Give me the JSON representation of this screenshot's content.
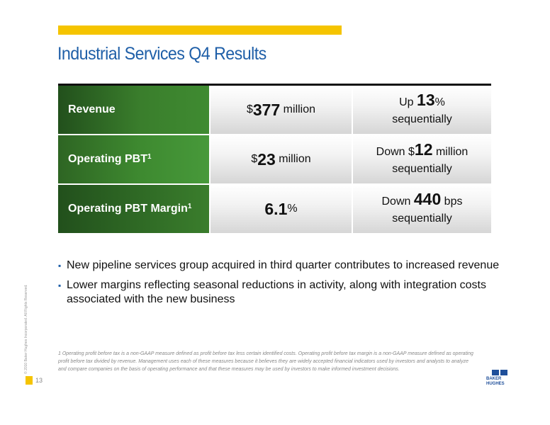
{
  "slide": {
    "title": "Industrial Services Q4 Results",
    "page_number": "13",
    "copyright": "© 2010 Baker Hughes Incorporated. All Rights Reserved."
  },
  "table": {
    "rows": [
      {
        "label": "Revenue",
        "label_sup": "",
        "value_pre": "$",
        "value_num": "377",
        "value_post": " million",
        "change_pre": "Up ",
        "change_num": "13",
        "change_post": "%",
        "change_line2": "sequentially"
      },
      {
        "label": "Operating PBT",
        "label_sup": "1",
        "value_pre": "$",
        "value_num": "23",
        "value_post": " million",
        "change_pre": "Down $",
        "change_num": "12",
        "change_post": " million",
        "change_line2": "sequentially"
      },
      {
        "label": "Operating PBT Margin",
        "label_sup": "1",
        "value_pre": "",
        "value_num": "6.1",
        "value_post": "%",
        "change_pre": "Down ",
        "change_num": "440",
        "change_post": " bps",
        "change_line2": "sequentially"
      }
    ]
  },
  "bullets": [
    "New pipeline services group acquired in third quarter contributes to increased revenue",
    "Lower margins reflecting seasonal reductions in activity, along with integration costs associated with the new business"
  ],
  "footnote": "1 Operating profit before tax is a non-GAAP measure defined as profit before tax less certain identified costs. Operating profit before tax margin is a non-GAAP measure defined as operating profit before tax divided by revenue. Management uses each of these measures because it believes they are widely accepted financial indicators used by investors and analysts to analyze and compare companies on the basis of operating performance and that these measures may be used by investors to make informed investment decisions.",
  "logo": {
    "line1": "BAKER",
    "line2": "HUGHES"
  },
  "colors": {
    "accent_yellow": "#f5c400",
    "title_blue": "#1f5fa8",
    "label_green": "#3a7e2c"
  }
}
